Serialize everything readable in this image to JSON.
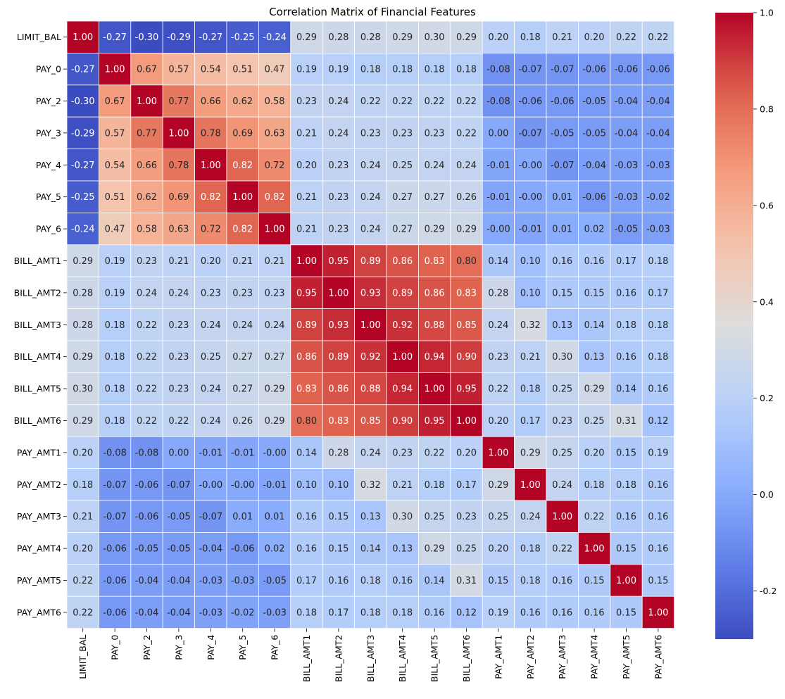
{
  "chart_data": {
    "type": "heatmap",
    "title": "Correlation Matrix of Financial Features",
    "xlabel": "",
    "ylabel": "",
    "labels": [
      "LIMIT_BAL",
      "PAY_0",
      "PAY_2",
      "PAY_3",
      "PAY_4",
      "PAY_5",
      "PAY_6",
      "BILL_AMT1",
      "BILL_AMT2",
      "BILL_AMT3",
      "BILL_AMT4",
      "BILL_AMT5",
      "BILL_AMT6",
      "PAY_AMT1",
      "PAY_AMT2",
      "PAY_AMT3",
      "PAY_AMT4",
      "PAY_AMT5",
      "PAY_AMT6"
    ],
    "matrix": [
      [
        "1.00",
        "-0.27",
        "-0.30",
        "-0.29",
        "-0.27",
        "-0.25",
        "-0.24",
        "0.29",
        "0.28",
        "0.28",
        "0.29",
        "0.30",
        "0.29",
        "0.20",
        "0.18",
        "0.21",
        "0.20",
        "0.22",
        "0.22"
      ],
      [
        "-0.27",
        "1.00",
        "0.67",
        "0.57",
        "0.54",
        "0.51",
        "0.47",
        "0.19",
        "0.19",
        "0.18",
        "0.18",
        "0.18",
        "0.18",
        "-0.08",
        "-0.07",
        "-0.07",
        "-0.06",
        "-0.06",
        "-0.06"
      ],
      [
        "-0.30",
        "0.67",
        "1.00",
        "0.77",
        "0.66",
        "0.62",
        "0.58",
        "0.23",
        "0.24",
        "0.22",
        "0.22",
        "0.22",
        "0.22",
        "-0.08",
        "-0.06",
        "-0.06",
        "-0.05",
        "-0.04",
        "-0.04"
      ],
      [
        "-0.29",
        "0.57",
        "0.77",
        "1.00",
        "0.78",
        "0.69",
        "0.63",
        "0.21",
        "0.24",
        "0.23",
        "0.23",
        "0.23",
        "0.22",
        "0.00",
        "-0.07",
        "-0.05",
        "-0.05",
        "-0.04",
        "-0.04"
      ],
      [
        "-0.27",
        "0.54",
        "0.66",
        "0.78",
        "1.00",
        "0.82",
        "0.72",
        "0.20",
        "0.23",
        "0.24",
        "0.25",
        "0.24",
        "0.24",
        "-0.01",
        "-0.00",
        "-0.07",
        "-0.04",
        "-0.03",
        "-0.03"
      ],
      [
        "-0.25",
        "0.51",
        "0.62",
        "0.69",
        "0.82",
        "1.00",
        "0.82",
        "0.21",
        "0.23",
        "0.24",
        "0.27",
        "0.27",
        "0.26",
        "-0.01",
        "-0.00",
        "0.01",
        "-0.06",
        "-0.03",
        "-0.02"
      ],
      [
        "-0.24",
        "0.47",
        "0.58",
        "0.63",
        "0.72",
        "0.82",
        "1.00",
        "0.21",
        "0.23",
        "0.24",
        "0.27",
        "0.29",
        "0.29",
        "-0.00",
        "-0.01",
        "0.01",
        "0.02",
        "-0.05",
        "-0.03"
      ],
      [
        "0.29",
        "0.19",
        "0.23",
        "0.21",
        "0.20",
        "0.21",
        "0.21",
        "1.00",
        "0.95",
        "0.89",
        "0.86",
        "0.83",
        "0.80",
        "0.14",
        "0.10",
        "0.16",
        "0.16",
        "0.17",
        "0.18"
      ],
      [
        "0.28",
        "0.19",
        "0.24",
        "0.24",
        "0.23",
        "0.23",
        "0.23",
        "0.95",
        "1.00",
        "0.93",
        "0.89",
        "0.86",
        "0.83",
        "0.28",
        "0.10",
        "0.15",
        "0.15",
        "0.16",
        "0.17"
      ],
      [
        "0.28",
        "0.18",
        "0.22",
        "0.23",
        "0.24",
        "0.24",
        "0.24",
        "0.89",
        "0.93",
        "1.00",
        "0.92",
        "0.88",
        "0.85",
        "0.24",
        "0.32",
        "0.13",
        "0.14",
        "0.18",
        "0.18"
      ],
      [
        "0.29",
        "0.18",
        "0.22",
        "0.23",
        "0.25",
        "0.27",
        "0.27",
        "0.86",
        "0.89",
        "0.92",
        "1.00",
        "0.94",
        "0.90",
        "0.23",
        "0.21",
        "0.30",
        "0.13",
        "0.16",
        "0.18"
      ],
      [
        "0.30",
        "0.18",
        "0.22",
        "0.23",
        "0.24",
        "0.27",
        "0.29",
        "0.83",
        "0.86",
        "0.88",
        "0.94",
        "1.00",
        "0.95",
        "0.22",
        "0.18",
        "0.25",
        "0.29",
        "0.14",
        "0.16"
      ],
      [
        "0.29",
        "0.18",
        "0.22",
        "0.22",
        "0.24",
        "0.26",
        "0.29",
        "0.80",
        "0.83",
        "0.85",
        "0.90",
        "0.95",
        "1.00",
        "0.20",
        "0.17",
        "0.23",
        "0.25",
        "0.31",
        "0.12"
      ],
      [
        "0.20",
        "-0.08",
        "-0.08",
        "0.00",
        "-0.01",
        "-0.01",
        "-0.00",
        "0.14",
        "0.28",
        "0.24",
        "0.23",
        "0.22",
        "0.20",
        "1.00",
        "0.29",
        "0.25",
        "0.20",
        "0.15",
        "0.19"
      ],
      [
        "0.18",
        "-0.07",
        "-0.06",
        "-0.07",
        "-0.00",
        "-0.00",
        "-0.01",
        "0.10",
        "0.10",
        "0.32",
        "0.21",
        "0.18",
        "0.17",
        "0.29",
        "1.00",
        "0.24",
        "0.18",
        "0.18",
        "0.16"
      ],
      [
        "0.21",
        "-0.07",
        "-0.06",
        "-0.05",
        "-0.07",
        "0.01",
        "0.01",
        "0.16",
        "0.15",
        "0.13",
        "0.30",
        "0.25",
        "0.23",
        "0.25",
        "0.24",
        "1.00",
        "0.22",
        "0.16",
        "0.16"
      ],
      [
        "0.20",
        "-0.06",
        "-0.05",
        "-0.05",
        "-0.04",
        "-0.06",
        "0.02",
        "0.16",
        "0.15",
        "0.14",
        "0.13",
        "0.29",
        "0.25",
        "0.20",
        "0.18",
        "0.22",
        "1.00",
        "0.15",
        "0.16"
      ],
      [
        "0.22",
        "-0.06",
        "-0.04",
        "-0.04",
        "-0.03",
        "-0.03",
        "-0.05",
        "0.17",
        "0.16",
        "0.18",
        "0.16",
        "0.14",
        "0.31",
        "0.15",
        "0.18",
        "0.16",
        "0.15",
        "1.00",
        "0.15"
      ],
      [
        "0.22",
        "-0.06",
        "-0.04",
        "-0.04",
        "-0.03",
        "-0.02",
        "-0.03",
        "0.18",
        "0.17",
        "0.18",
        "0.18",
        "0.16",
        "0.12",
        "0.19",
        "0.16",
        "0.16",
        "0.16",
        "0.15",
        "1.00"
      ]
    ],
    "colorscale": "coolwarm",
    "vmin": -0.3,
    "vmax": 1.0,
    "colorbar": {
      "ticks": [
        "-0.2",
        "0.0",
        "0.2",
        "0.4",
        "0.6",
        "0.8",
        "1.0"
      ]
    },
    "annotations_shown": true,
    "grid": "white cell borders"
  }
}
